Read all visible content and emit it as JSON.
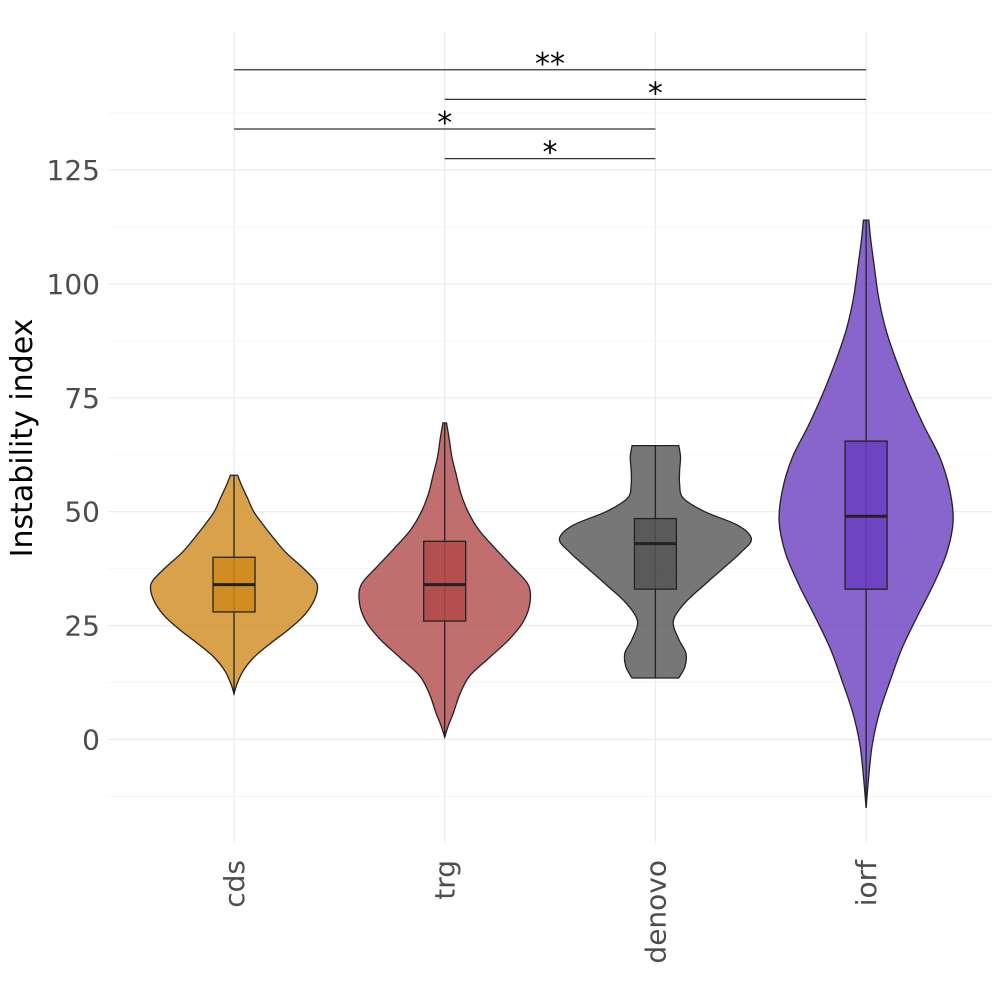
{
  "chart_data": {
    "type": "violin",
    "ylabel": "Instability index",
    "xlabel": "",
    "ylim": [
      -23,
      155
    ],
    "yticks": [
      0,
      25,
      50,
      75,
      100,
      125
    ],
    "categories": [
      "cds",
      "trg",
      "denovo",
      "iorf"
    ],
    "grid": true,
    "groups": [
      {
        "name": "cds",
        "color": "#CF8A1B",
        "min": 10,
        "q1": 28,
        "median": 34,
        "q3": 40,
        "max": 58,
        "density": [
          [
            10,
            0
          ],
          [
            12,
            3
          ],
          [
            15,
            10
          ],
          [
            18,
            22
          ],
          [
            21,
            40
          ],
          [
            24,
            60
          ],
          [
            27,
            77
          ],
          [
            30,
            88
          ],
          [
            33,
            93
          ],
          [
            35,
            90
          ],
          [
            38,
            75
          ],
          [
            41,
            58
          ],
          [
            44,
            45
          ],
          [
            47,
            33
          ],
          [
            50,
            22
          ],
          [
            53,
            15
          ],
          [
            56,
            8
          ],
          [
            58,
            4
          ]
        ]
      },
      {
        "name": "trg",
        "color": "#B24A4A",
        "min": 0.5,
        "q1": 26,
        "median": 34,
        "q3": 43.5,
        "max": 69.5,
        "density": [
          [
            0.5,
            0
          ],
          [
            3,
            4
          ],
          [
            6,
            10
          ],
          [
            10,
            17
          ],
          [
            14,
            28
          ],
          [
            18,
            50
          ],
          [
            22,
            72
          ],
          [
            26,
            88
          ],
          [
            30,
            95
          ],
          [
            34,
            93
          ],
          [
            38,
            75
          ],
          [
            42,
            56
          ],
          [
            46,
            38
          ],
          [
            50,
            26
          ],
          [
            54,
            18
          ],
          [
            58,
            13
          ],
          [
            62,
            8
          ],
          [
            66,
            5
          ],
          [
            69.5,
            2
          ]
        ]
      },
      {
        "name": "denovo",
        "color": "#555555",
        "min": 13.5,
        "q1": 33,
        "median": 43,
        "q3": 48.5,
        "max": 64.5,
        "density": [
          [
            13.5,
            26
          ],
          [
            16,
            33
          ],
          [
            19,
            34
          ],
          [
            22,
            26
          ],
          [
            26,
            20
          ],
          [
            30,
            33
          ],
          [
            34,
            55
          ],
          [
            38,
            78
          ],
          [
            41,
            95
          ],
          [
            44,
            107
          ],
          [
            47,
            92
          ],
          [
            50,
            55
          ],
          [
            53,
            31
          ],
          [
            56,
            27
          ],
          [
            59,
            27
          ],
          [
            62,
            28
          ],
          [
            64.5,
            26
          ]
        ]
      },
      {
        "name": "iorf",
        "color": "#6A3EC0",
        "min": -15,
        "q1": 33,
        "median": 49,
        "q3": 65.5,
        "max": 114,
        "density": [
          [
            -15,
            0
          ],
          [
            -8,
            3
          ],
          [
            -1,
            7
          ],
          [
            6,
            15
          ],
          [
            13,
            27
          ],
          [
            20,
            40
          ],
          [
            27,
            57
          ],
          [
            34,
            75
          ],
          [
            41,
            90
          ],
          [
            48,
            97
          ],
          [
            55,
            93
          ],
          [
            62,
            82
          ],
          [
            69,
            64
          ],
          [
            76,
            48
          ],
          [
            83,
            34
          ],
          [
            90,
            22
          ],
          [
            97,
            14
          ],
          [
            104,
            9
          ],
          [
            110,
            5
          ],
          [
            114,
            3
          ]
        ]
      }
    ],
    "comparisons": [
      {
        "from": "cds",
        "to": "iorf",
        "y": 147,
        "label": "**"
      },
      {
        "from": "trg",
        "to": "iorf",
        "y": 140.5,
        "label": "*"
      },
      {
        "from": "cds",
        "to": "denovo",
        "y": 134,
        "label": "*"
      },
      {
        "from": "trg",
        "to": "denovo",
        "y": 127.5,
        "label": "*"
      }
    ]
  }
}
